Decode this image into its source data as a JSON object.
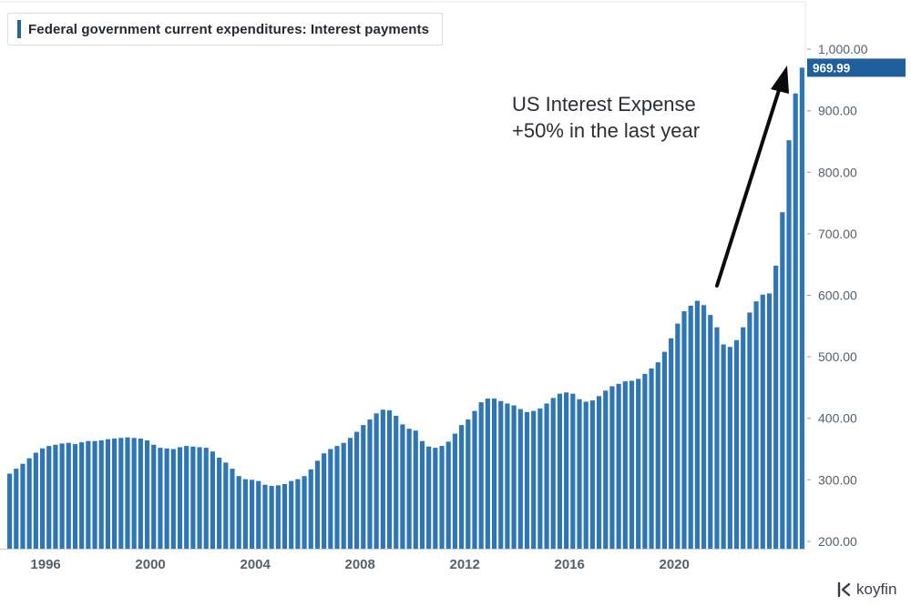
{
  "legend": {
    "title": "Federal government current expenditures: Interest payments"
  },
  "annotation": {
    "line1": "US Interest Expense",
    "line2": "+50% in the last year"
  },
  "brand": {
    "name": "koyfin",
    "icon": "koyfin-logo-icon"
  },
  "last_value_label": "969.99",
  "colors": {
    "bar": "#2f76b5",
    "accent": "#1f5f9c",
    "text": "#55606b",
    "grid": "#e9ecef"
  },
  "chart_data": {
    "type": "bar",
    "title": "Federal government current expenditures: Interest payments",
    "xlabel": "",
    "ylabel": "",
    "ylim": [
      188,
      1080
    ],
    "x_ticks": [
      "1996",
      "2000",
      "2004",
      "2008",
      "2012",
      "2016",
      "2020"
    ],
    "y_ticks": [
      "200.00",
      "300.00",
      "400.00",
      "500.00",
      "600.00",
      "700.00",
      "800.00",
      "900.00",
      "1,000.00"
    ],
    "y_tick_values": [
      200,
      300,
      400,
      500,
      600,
      700,
      800,
      900,
      1000
    ],
    "grid": false,
    "frequency": "quarterly",
    "first_period": "1994 Q3",
    "last_value": 969.99,
    "values": [
      310,
      318,
      326,
      335,
      344,
      351,
      355,
      357,
      359,
      360,
      358,
      361,
      363,
      363,
      364,
      366,
      367,
      368,
      369,
      368,
      367,
      364,
      357,
      352,
      351,
      350,
      353,
      355,
      354,
      353,
      352,
      346,
      336,
      328,
      318,
      306,
      301,
      300,
      298,
      292,
      290,
      291,
      293,
      298,
      301,
      306,
      317,
      331,
      343,
      350,
      355,
      360,
      368,
      378,
      389,
      398,
      408,
      414,
      413,
      404,
      390,
      383,
      380,
      363,
      354,
      352,
      355,
      362,
      375,
      389,
      398,
      412,
      426,
      432,
      432,
      428,
      424,
      421,
      415,
      410,
      412,
      416,
      424,
      433,
      440,
      442,
      440,
      431,
      427,
      429,
      436,
      445,
      452,
      456,
      460,
      461,
      464,
      472,
      481,
      491,
      508,
      530,
      554,
      574,
      583,
      591,
      584,
      568,
      548,
      520,
      516,
      527,
      548,
      572,
      590,
      601,
      603,
      648,
      735,
      852,
      928,
      970
    ]
  }
}
